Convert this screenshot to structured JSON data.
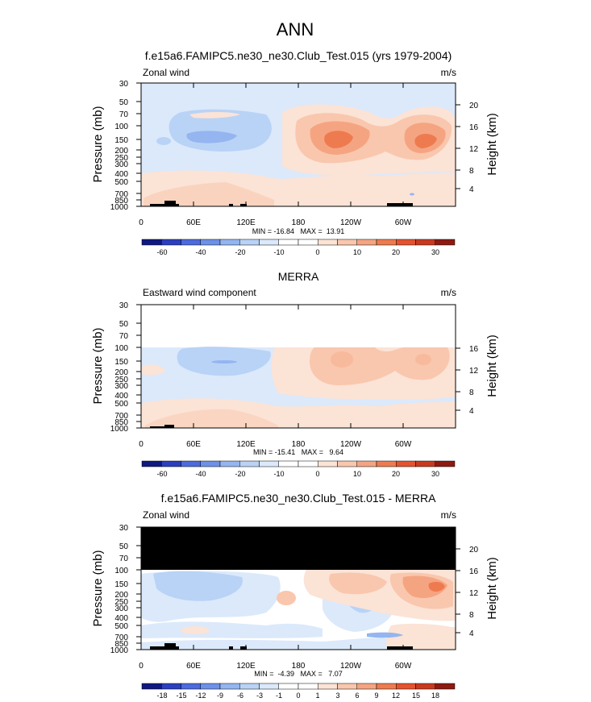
{
  "title": "ANN",
  "colors": {
    "plus_shades": [
      "#fbe3d6",
      "#f9c7ad",
      "#f5a482",
      "#ee7b4f",
      "#e4532f",
      "#c83a1f",
      "#8e1a12"
    ],
    "minus_shades": [
      "#dbe9fb",
      "#b9d3f6",
      "#94b5f0",
      "#6e91e8",
      "#4c6bdc",
      "#2c3fc0",
      "#0f1980"
    ],
    "zero_shade": "#ffffff",
    "mask": "#000000",
    "topography": "#000000"
  },
  "chart_data": [
    {
      "type": "heatmap",
      "title": "f.e15a6.FAMIPC5.ne30_ne30.Club_Test.015 (yrs 1979-2004)",
      "left_label": "Zonal wind",
      "units": "m/s",
      "ylabel": "Pressure (mb)",
      "y2label": "Height (km)",
      "xticks": [
        "0",
        "60E",
        "120E",
        "180",
        "120W",
        "60W"
      ],
      "yticks": [
        "30",
        "50",
        "70",
        "100",
        "150",
        "200",
        "250",
        "300",
        "400",
        "500",
        "700",
        "850",
        "1000"
      ],
      "y2ticks": [
        "20",
        "16",
        "12",
        "8",
        "4"
      ],
      "y_scale": "log-pressure",
      "stats": "MIN = -16.84   MAX =  13.91",
      "colorbar": [
        "-60",
        "-40",
        "-20",
        "-10",
        "0",
        "10",
        "20",
        "30"
      ],
      "levels": [
        -70,
        -60,
        -50,
        -40,
        -30,
        -20,
        -15,
        -10,
        -5,
        0,
        5,
        10,
        15,
        20,
        25,
        30,
        35
      ]
    },
    {
      "type": "heatmap",
      "title": "MERRA",
      "left_label": "Eastward wind component",
      "units": "m/s",
      "ylabel": "Pressure (mb)",
      "y2label": "Height (km)",
      "xticks": [
        "0",
        "60E",
        "120E",
        "180",
        "120W",
        "60W"
      ],
      "yticks": [
        "30",
        "50",
        "70",
        "100",
        "150",
        "200",
        "250",
        "300",
        "400",
        "500",
        "700",
        "850",
        "1000"
      ],
      "y2ticks": [
        "16",
        "12",
        "8",
        "4"
      ],
      "y_scale": "log-pressure",
      "top_pressure": 100,
      "stats": "MIN = -15.41   MAX =   9.64",
      "colorbar": [
        "-60",
        "-40",
        "-20",
        "-10",
        "0",
        "10",
        "20",
        "30"
      ],
      "levels": [
        -70,
        -60,
        -50,
        -40,
        -30,
        -20,
        -15,
        -10,
        -5,
        0,
        5,
        10,
        15,
        20,
        25,
        30,
        35
      ]
    },
    {
      "type": "heatmap",
      "title": "f.e15a6.FAMIPC5.ne30_ne30.Club_Test.015 - MERRA",
      "left_label": "Zonal wind",
      "units": "m/s",
      "ylabel": "Pressure (mb)",
      "y2label": "Height (km)",
      "xticks": [
        "0",
        "60E",
        "120E",
        "180",
        "120W",
        "60W"
      ],
      "yticks": [
        "30",
        "50",
        "70",
        "100",
        "150",
        "200",
        "250",
        "300",
        "400",
        "500",
        "700",
        "850",
        "1000"
      ],
      "y2ticks": [
        "20",
        "16",
        "12",
        "8",
        "4"
      ],
      "y_scale": "log-pressure",
      "masked_above": 100,
      "stats": "MIN =  -4.39   MAX =   7.07",
      "colorbar": [
        "-18",
        "-15",
        "-12",
        "-9",
        "-6",
        "-3",
        "-1",
        "0",
        "1",
        "3",
        "6",
        "9",
        "12",
        "15",
        "18"
      ],
      "levels": [
        -21,
        -18,
        -15,
        -12,
        -9,
        -6,
        -3,
        -1,
        0,
        1,
        3,
        6,
        9,
        12,
        15,
        18,
        21
      ]
    }
  ]
}
